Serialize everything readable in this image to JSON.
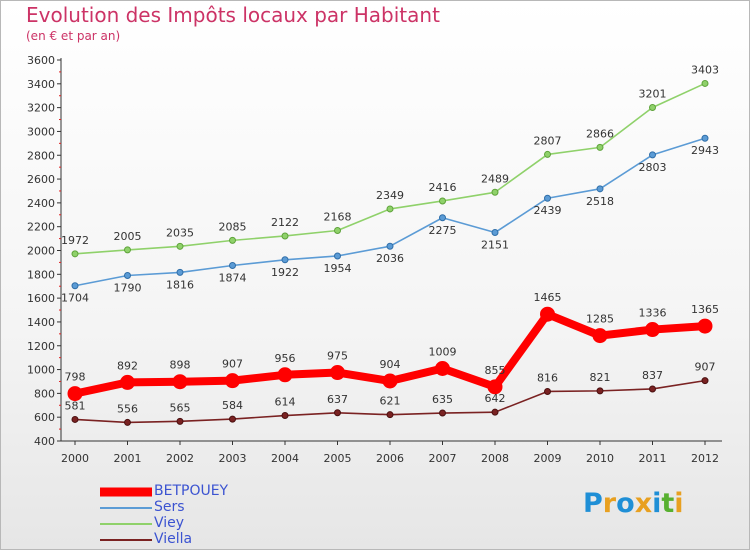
{
  "header": {
    "title": "Evolution des Impôts locaux par Habitant",
    "subtitle": "(en € et par an)"
  },
  "logo": {
    "text": "Proxiti",
    "letters": [
      "P",
      "r",
      "o",
      "x",
      "i",
      "t",
      "i"
    ],
    "colors": [
      "#1f8fd6",
      "#e8a020",
      "#1f8fd6",
      "#e8a020",
      "#1f8fd6",
      "#58b030",
      "#e8a020"
    ]
  },
  "chart_data": {
    "type": "line",
    "title": "Evolution des Impôts locaux par Habitant",
    "subtitle": "(en € et par an)",
    "xlabel": "",
    "ylabel": "",
    "ylim": [
      400,
      3600
    ],
    "yticks": [
      400,
      600,
      800,
      1000,
      1200,
      1400,
      1600,
      1800,
      2000,
      2200,
      2400,
      2600,
      2800,
      3000,
      3200,
      3400,
      3600
    ],
    "categories": [
      "2000",
      "2001",
      "2002",
      "2003",
      "2004",
      "2005",
      "2006",
      "2007",
      "2008",
      "2009",
      "2010",
      "2011",
      "2012"
    ],
    "grid": false,
    "legend_position": "bottom-left",
    "series": [
      {
        "name": "BETPOUEY",
        "color": "#ff0000",
        "values": [
          798,
          892,
          898,
          907,
          956,
          975,
          904,
          1009,
          855,
          1465,
          1285,
          1336,
          1365
        ]
      },
      {
        "name": "Sers",
        "color": "#5b9bd5",
        "values": [
          1704,
          1790,
          1816,
          1874,
          1922,
          1954,
          2036,
          2275,
          2151,
          2439,
          2518,
          2803,
          2943
        ]
      },
      {
        "name": "Viey",
        "color": "#8fd16a",
        "values": [
          1972,
          2005,
          2035,
          2085,
          2122,
          2168,
          2349,
          2416,
          2489,
          2807,
          2866,
          3201,
          3403
        ]
      },
      {
        "name": "Viella",
        "color": "#7a2222",
        "values": [
          581,
          556,
          565,
          584,
          614,
          637,
          621,
          635,
          642,
          816,
          821,
          837,
          907
        ]
      }
    ]
  }
}
